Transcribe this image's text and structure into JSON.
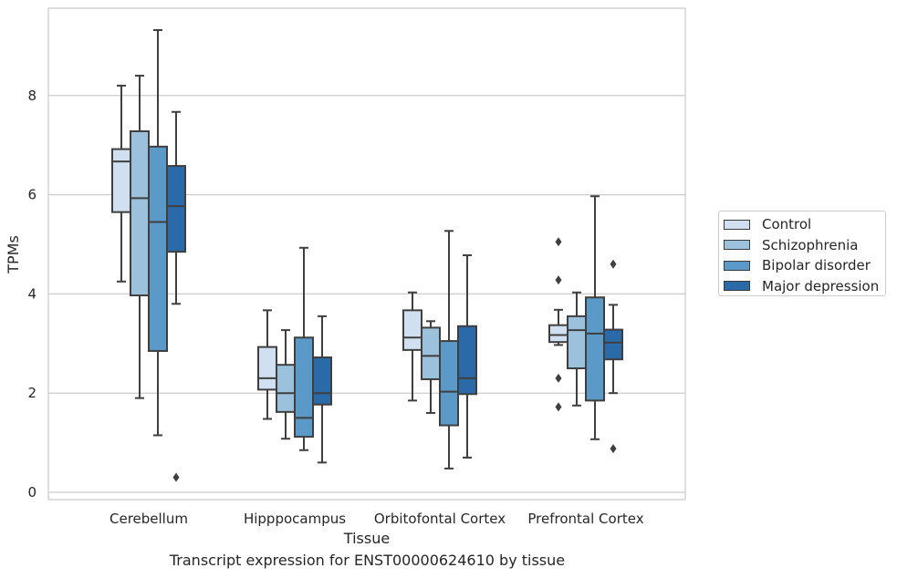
{
  "chart_data": {
    "type": "boxplot",
    "title": "Transcript expression for ENST00000624610 by tissue",
    "xlabel": "Tissue",
    "ylabel": "TPMs",
    "ylim": [
      -0.15,
      9.6
    ],
    "yticks": [
      0,
      2,
      4,
      6,
      8
    ],
    "categories": [
      "Cerebellum",
      "Hipppocampus",
      "Orbitofontal Cortex",
      "Prefrontal Cortex"
    ],
    "grid": "horizontal",
    "legend_position": "right",
    "series": [
      {
        "name": "Control",
        "color": "#d1e0f0",
        "boxes": [
          {
            "whislo": 4.25,
            "q1": 5.65,
            "med": 6.67,
            "q3": 6.92,
            "whishi": 8.2,
            "fliers": []
          },
          {
            "whislo": 1.48,
            "q1": 2.07,
            "med": 2.3,
            "q3": 2.93,
            "whishi": 3.67,
            "fliers": []
          },
          {
            "whislo": 1.85,
            "q1": 2.87,
            "med": 3.12,
            "q3": 3.67,
            "whishi": 4.03,
            "fliers": []
          },
          {
            "whislo": 2.97,
            "q1": 3.03,
            "med": 3.17,
            "q3": 3.37,
            "whishi": 3.68,
            "fliers": [
              5.05,
              4.28,
              2.3,
              1.72
            ]
          }
        ]
      },
      {
        "name": "Schizophrenia",
        "color": "#9cc1dd",
        "boxes": [
          {
            "whislo": 1.9,
            "q1": 3.97,
            "med": 5.93,
            "q3": 7.28,
            "whishi": 8.4,
            "fliers": []
          },
          {
            "whislo": 1.08,
            "q1": 1.62,
            "med": 2.0,
            "q3": 2.57,
            "whishi": 3.27,
            "fliers": []
          },
          {
            "whislo": 1.6,
            "q1": 2.28,
            "med": 2.75,
            "q3": 3.32,
            "whishi": 3.45,
            "fliers": []
          },
          {
            "whislo": 1.75,
            "q1": 2.5,
            "med": 3.27,
            "q3": 3.55,
            "whishi": 4.03,
            "fliers": []
          }
        ]
      },
      {
        "name": "Bipolar disorder",
        "color": "#5a99c8",
        "boxes": [
          {
            "whislo": 1.15,
            "q1": 2.85,
            "med": 5.45,
            "q3": 6.97,
            "whishi": 9.32,
            "fliers": []
          },
          {
            "whislo": 0.85,
            "q1": 1.12,
            "med": 1.5,
            "q3": 3.12,
            "whishi": 4.93,
            "fliers": []
          },
          {
            "whislo": 0.48,
            "q1": 1.35,
            "med": 2.03,
            "q3": 3.05,
            "whishi": 5.27,
            "fliers": []
          },
          {
            "whislo": 1.07,
            "q1": 1.85,
            "med": 3.2,
            "q3": 3.93,
            "whishi": 5.97,
            "fliers": []
          }
        ]
      },
      {
        "name": "Major depression",
        "color": "#2a6aa8",
        "boxes": [
          {
            "whislo": 3.8,
            "q1": 4.85,
            "med": 5.77,
            "q3": 6.58,
            "whishi": 7.67,
            "fliers": [
              0.3
            ]
          },
          {
            "whislo": 0.6,
            "q1": 1.77,
            "med": 2.0,
            "q3": 2.72,
            "whishi": 3.55,
            "fliers": []
          },
          {
            "whislo": 0.7,
            "q1": 1.98,
            "med": 2.3,
            "q3": 3.35,
            "whishi": 4.78,
            "fliers": []
          },
          {
            "whislo": 2.0,
            "q1": 2.68,
            "med": 3.02,
            "q3": 3.28,
            "whishi": 3.78,
            "fliers": [
              4.6,
              0.88
            ]
          }
        ]
      }
    ]
  }
}
